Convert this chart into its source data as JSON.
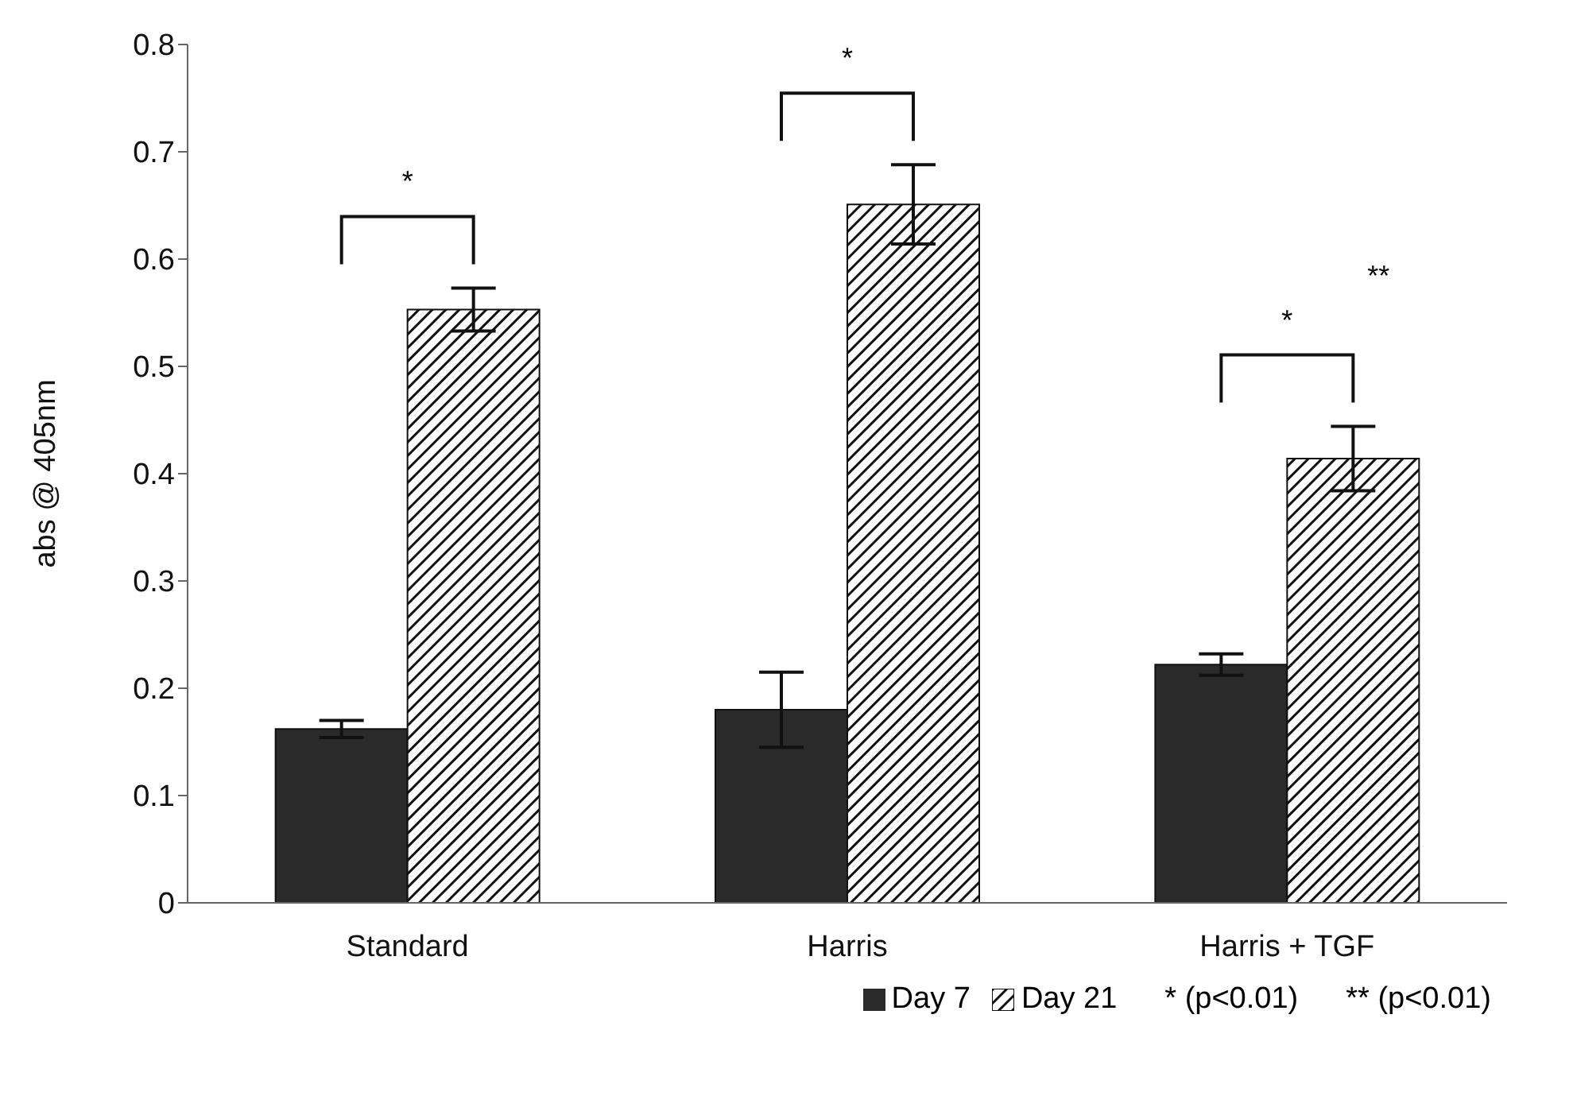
{
  "chart_data": {
    "type": "bar",
    "ylabel": "abs @ 405nm",
    "categories": [
      "Standard",
      "Harris",
      "Harris + TGF"
    ],
    "series": [
      {
        "name": "Day 7",
        "color": "#2a2a2a",
        "values": [
          0.162,
          0.18,
          0.222
        ],
        "errors": [
          0.008,
          0.035,
          0.01
        ]
      },
      {
        "name": "Day 21",
        "color": "#111111",
        "values": [
          0.553,
          0.651,
          0.414
        ],
        "errors": [
          0.02,
          0.037,
          0.03
        ]
      }
    ],
    "ylim": [
      0,
      0.8
    ],
    "yticks": [
      0,
      0.1,
      0.2,
      0.3,
      0.4,
      0.5,
      0.6,
      0.7,
      0.8
    ],
    "legend": "bottom",
    "annotations": [
      "*",
      "*",
      "*",
      "**",
      "* (p<0.01)",
      "** (p<0.01)"
    ]
  }
}
